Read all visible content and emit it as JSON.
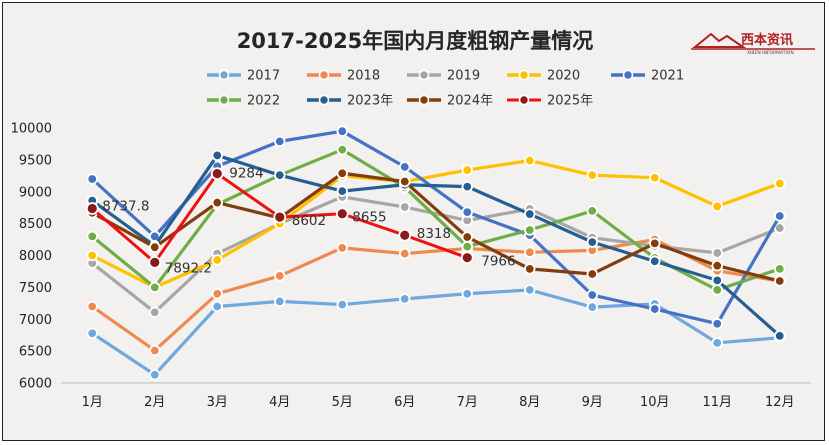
{
  "chart_data": {
    "type": "line",
    "title": "2017-2025年国内月度粗钢产量情况",
    "categories": [
      "1月",
      "2月",
      "3月",
      "4月",
      "5月",
      "6月",
      "7月",
      "8月",
      "9月",
      "10月",
      "11月",
      "12月"
    ],
    "ylim": [
      6000,
      10000
    ],
    "yticks": [
      6000,
      6500,
      7000,
      7500,
      8000,
      8500,
      9000,
      9500,
      10000
    ],
    "grid": false,
    "legend_position": "top",
    "series": [
      {
        "name": "2017",
        "color": "#6fa8dc",
        "values": [
          6780,
          6130,
          7200,
          7280,
          7230,
          7320,
          7400,
          7460,
          7190,
          7240,
          6630,
          6710
        ]
      },
      {
        "name": "2018",
        "color": "#ed8b4e",
        "values": [
          7200,
          6510,
          7400,
          7680,
          8120,
          8030,
          8110,
          8050,
          8080,
          8250,
          7760,
          7600
        ]
      },
      {
        "name": "2019",
        "color": "#a6a6a6",
        "values": [
          7880,
          7110,
          8030,
          8500,
          8920,
          8760,
          8550,
          8730,
          8280,
          8150,
          8040,
          8430
        ]
      },
      {
        "name": "2020",
        "color": "#ffc000",
        "values": [
          8000,
          7500,
          7930,
          8500,
          9250,
          9160,
          9340,
          9490,
          9260,
          9220,
          8770,
          9130
        ]
      },
      {
        "name": "2021",
        "color": "#4472c4",
        "values": [
          9200,
          8300,
          9400,
          9790,
          9950,
          9390,
          8680,
          8320,
          7380,
          7160,
          6930,
          8620
        ]
      },
      {
        "name": "2022",
        "color": "#70ad47",
        "values": [
          8300,
          7500,
          8800,
          9260,
          9660,
          9070,
          8140,
          8400,
          8700,
          7960,
          7460,
          7790
        ]
      },
      {
        "name": "2023年",
        "color": "#255e91",
        "values": [
          8860,
          8150,
          9570,
          9260,
          9010,
          9110,
          9080,
          8650,
          8210,
          7910,
          7610,
          6740
        ]
      },
      {
        "name": "2024年",
        "color": "#843c0c",
        "values": [
          8670,
          8130,
          8830,
          8590,
          9290,
          9160,
          8290,
          7790,
          7710,
          8190,
          7840,
          7600
        ]
      },
      {
        "name": "2025年",
        "color": "#ee1111",
        "values": [
          8737.8,
          7892.2,
          9284,
          8602,
          8655,
          8318,
          7966,
          null,
          null,
          null,
          null,
          null
        ]
      }
    ],
    "data_labels": [
      {
        "series": "2025年",
        "category": "1月",
        "text": "8737.8"
      },
      {
        "series": "2025年",
        "category": "2月",
        "text": "7892.2"
      },
      {
        "series": "2025年",
        "category": "3月",
        "text": "9284"
      },
      {
        "series": "2025年",
        "category": "4月",
        "text": "8602"
      },
      {
        "series": "2025年",
        "category": "5月",
        "text": "8655"
      },
      {
        "series": "2025年",
        "category": "6月",
        "text": "8318"
      },
      {
        "series": "2025年",
        "category": "7月",
        "text": "7966"
      }
    ]
  },
  "logo": {
    "name": "西本资讯",
    "subtitle": "XIBEN INFORMATION"
  }
}
